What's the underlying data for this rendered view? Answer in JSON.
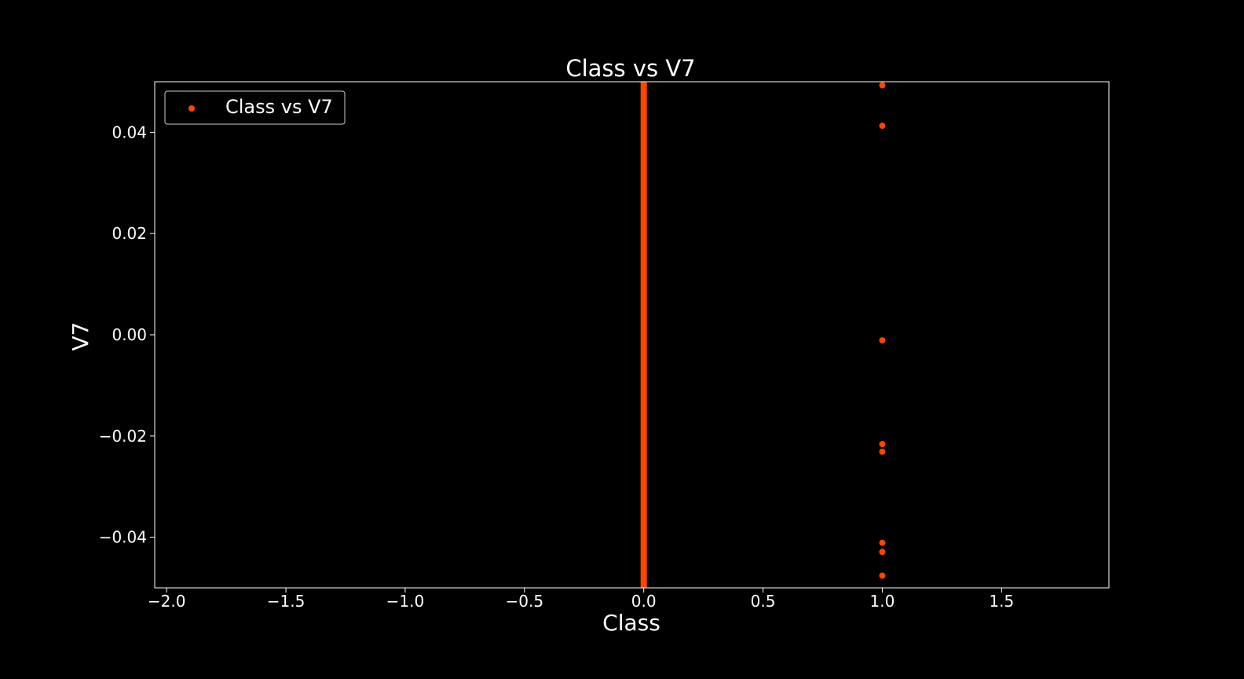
{
  "chart_data": {
    "type": "scatter",
    "title": "Class vs V7",
    "xlabel": "Class",
    "ylabel": "V7",
    "xlim": [
      -2.05,
      1.95
    ],
    "ylim": [
      -0.05,
      0.05
    ],
    "x_ticks": [
      -2.0,
      -1.5,
      -1.0,
      -0.5,
      0.0,
      0.5,
      1.0,
      1.5
    ],
    "x_tick_labels": [
      "−2.0",
      "−1.5",
      "−1.0",
      "−0.5",
      "0.0",
      "0.5",
      "1.0",
      "1.5"
    ],
    "y_ticks": [
      -0.04,
      -0.02,
      0.0,
      0.02,
      0.04
    ],
    "y_tick_labels": [
      "−0.04",
      "−0.02",
      "0.00",
      "0.02",
      "0.04"
    ],
    "grid": false,
    "legend_position": "top-left",
    "series": [
      {
        "name": "Class vs V7",
        "color": "#ff4500",
        "segments": [
          {
            "x": 0,
            "y_range": [
              -0.05,
              0.05
            ]
          }
        ],
        "points": [
          {
            "x": 1,
            "y": 0.0493
          },
          {
            "x": 1,
            "y": 0.0413
          },
          {
            "x": 1,
            "y": -0.0011
          },
          {
            "x": 1,
            "y": -0.0216
          },
          {
            "x": 1,
            "y": -0.0231
          },
          {
            "x": 1,
            "y": -0.0411
          },
          {
            "x": 1,
            "y": -0.0429
          },
          {
            "x": 1,
            "y": -0.0476
          }
        ]
      }
    ]
  },
  "colors": {
    "background": "#000000",
    "foreground": "#ffffff",
    "marker": "#ff4500"
  }
}
